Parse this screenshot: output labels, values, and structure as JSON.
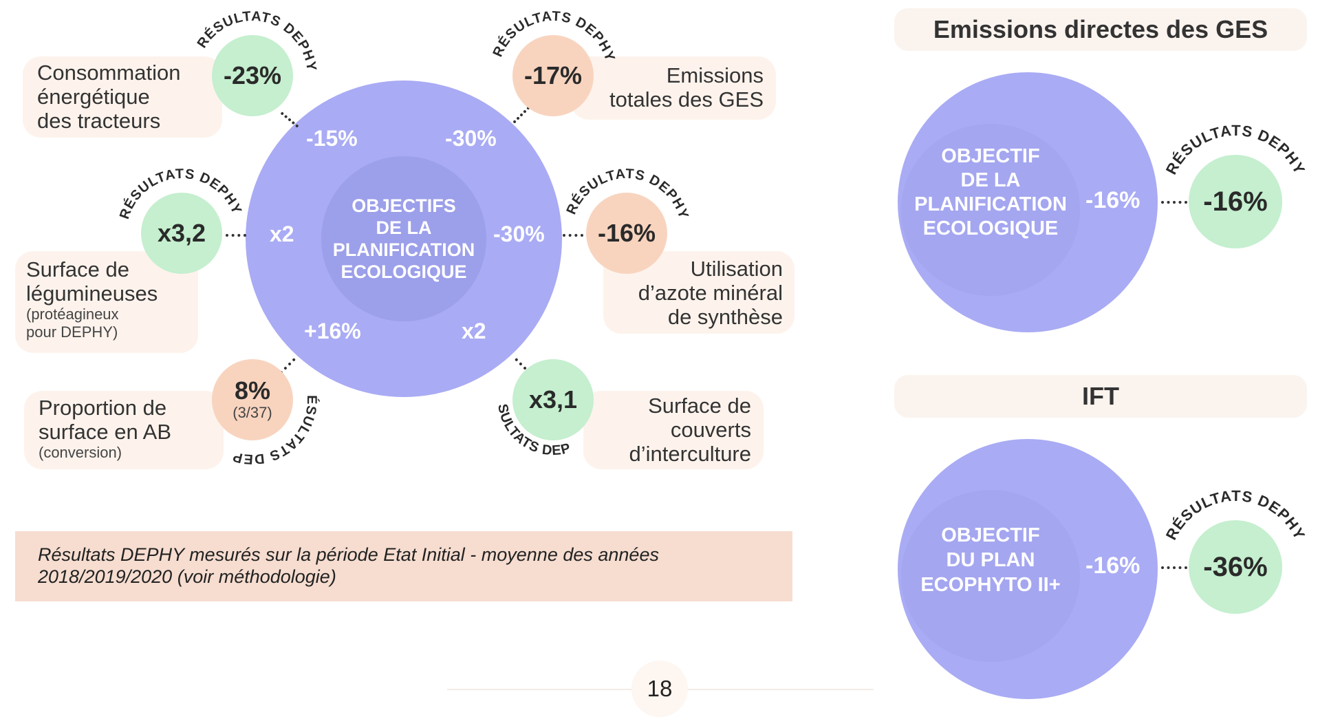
{
  "left": {
    "center": [
      "OBJECTIFS",
      "DE LA",
      "PLANIFICATION",
      "ECOLOGIQUE"
    ],
    "objective_values": {
      "top_left": "-15%",
      "top_right": "-30%",
      "mid_left": "x2",
      "mid_right": "-30%",
      "bottom_left": "+16%",
      "bottom_right": "x2"
    },
    "badges": {
      "tractors": "-23%",
      "ges": "-17%",
      "legumes": "x3,2",
      "azote": "-16%",
      "ab": "8%",
      "ab_sub": "(3/37)",
      "interculture": "x3,1"
    },
    "labels": {
      "tractors": [
        "Consommation",
        "énergétique",
        "des tracteurs"
      ],
      "ges": [
        "Emissions",
        "totales des GES"
      ],
      "legumes": [
        "Surface de",
        "légumineuses"
      ],
      "legumes_sub": [
        "(protéagineux",
        "pour DEPHY)"
      ],
      "azote": [
        "Utilisation",
        "d’azote minéral",
        "de synthèse"
      ],
      "ab": [
        "Proportion de",
        "surface en AB"
      ],
      "ab_sub": "(conversion)",
      "interculture": [
        "Surface de",
        "couverts",
        "d’interculture"
      ]
    },
    "arc_text": "RÉSULTATS DEPHY",
    "footnote": "Résultats DEPHY mesurés sur la période Etat Initial - moyenne des années 2018/2019/2020 (voir méthodologie)"
  },
  "page_number": "18",
  "right": {
    "ges": {
      "heading": "Emissions directes des GES",
      "circle": [
        "OBJECTIF",
        "DE LA",
        "PLANIFICATION",
        "ECOLOGIQUE"
      ],
      "objective": "-16%",
      "result": "-16%"
    },
    "ift": {
      "heading": "IFT",
      "circle": [
        "OBJECTIF",
        "DU PLAN",
        "ECOPHYTO II+"
      ],
      "objective": "-16%",
      "result": "-36%"
    }
  },
  "colors": {
    "objective_circle": "#a9abf4",
    "result_green": "#c5efcf",
    "result_peach": "#f8d4bf",
    "label_box": "#fdf3ec",
    "footnote_box": "#f6ddd0"
  }
}
